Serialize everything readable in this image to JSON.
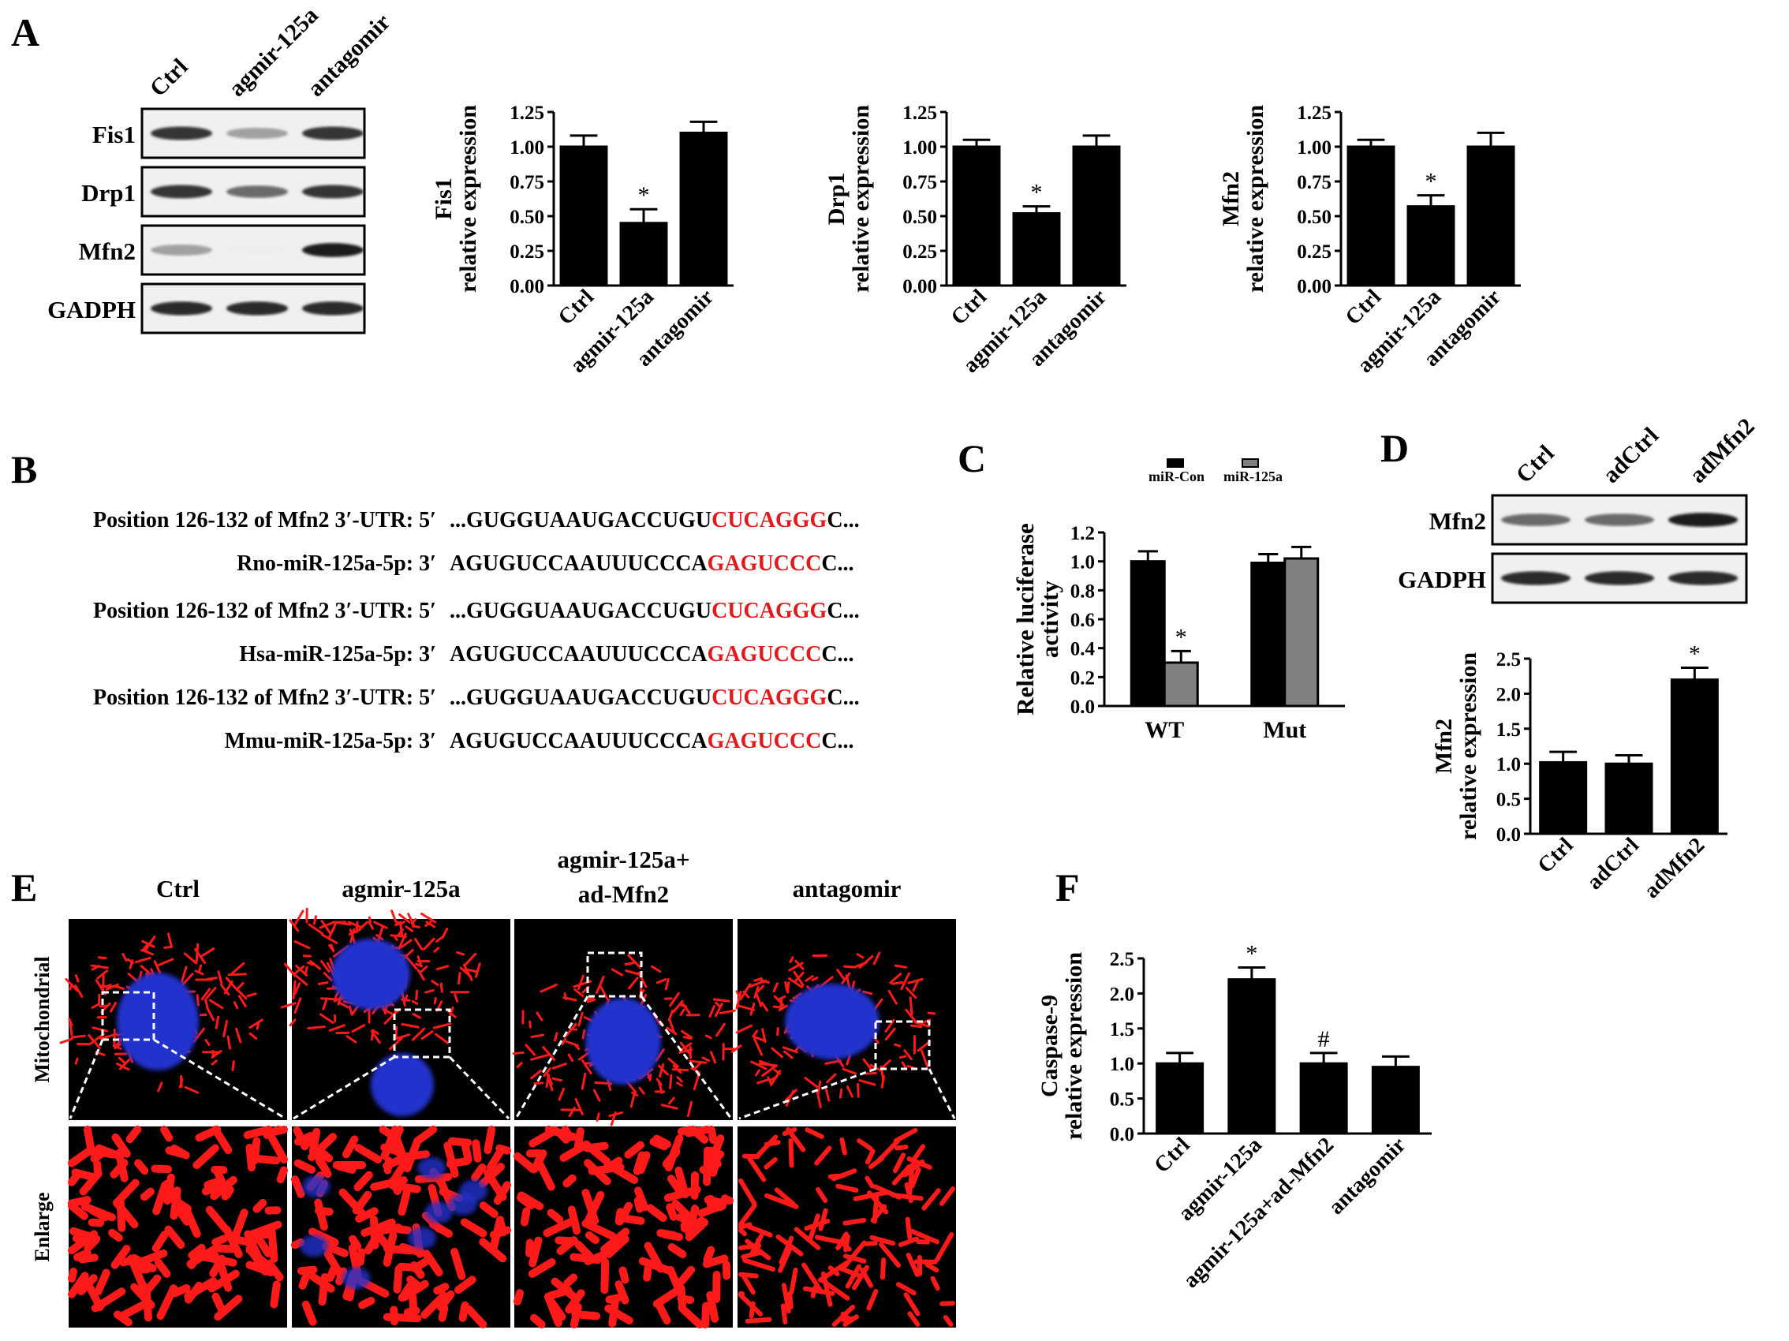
{
  "panel_letters": {
    "A": "A",
    "B": "B",
    "C": "C",
    "D": "D",
    "E": "E",
    "F": "F"
  },
  "colors": {
    "bar_dark": "#000000",
    "bar_gray": "#808080",
    "highlight_red": "#e31a1c",
    "mito_red": "#ff1a1a",
    "nucleus_blue": "#2233cc"
  },
  "blot_A": {
    "lanes": [
      "Ctrl",
      "agmir-125a",
      "antagomir"
    ],
    "rows": [
      {
        "label": "Fis1",
        "intensity": [
          0.85,
          0.35,
          0.85
        ]
      },
      {
        "label": "Drp1",
        "intensity": [
          0.85,
          0.6,
          0.85
        ]
      },
      {
        "label": "Mfn2",
        "intensity": [
          0.35,
          0.05,
          0.95
        ]
      },
      {
        "label": "GADPH",
        "intensity": [
          0.9,
          0.9,
          0.9
        ]
      }
    ]
  },
  "blot_D": {
    "lanes": [
      "Ctrl",
      "adCtrl",
      "adMfn2"
    ],
    "rows": [
      {
        "label": "Mfn2",
        "intensity": [
          0.6,
          0.6,
          0.95
        ]
      },
      {
        "label": "GADPH",
        "intensity": [
          0.9,
          0.9,
          0.9
        ]
      }
    ]
  },
  "sequences": {
    "rows": [
      {
        "label": "Position 126-132 of Mfn2 3′-UTR: 5′",
        "pre": "...GUGGUAAUGACCUGU",
        "hl": "CUCAGGG",
        "post": "C..."
      },
      {
        "label": "Rno-miR-125a-5p: 3′",
        "pre": "AGUGUCCAAUUUCCCA",
        "hl": "GAGUCCC",
        "post": "C..."
      },
      {
        "label": "Position 126-132 of Mfn2 3′-UTR: 5′",
        "pre": "...GUGGUAAUGACCUGU",
        "hl": "CUCAGGG",
        "post": "C..."
      },
      {
        "label": "Hsa-miR-125a-5p: 3′",
        "pre": "AGUGUCCAAUUUCCCA",
        "hl": "GAGUCCC",
        "post": "C..."
      },
      {
        "label": "Position 126-132 of Mfn2 3′-UTR: 5′",
        "pre": "...GUGGUAAUGACCUGU",
        "hl": "CUCAGGG",
        "post": "C..."
      },
      {
        "label": "Mmu-miR-125a-5p: 3′",
        "pre": "AGUGUCCAAUUUCCCA",
        "hl": "GAGUCCC",
        "post": "C..."
      }
    ]
  },
  "microscopy": {
    "columns": [
      "Ctrl",
      "agmir-125a",
      "agmir-125a+\nad-Mfn2",
      "antagomir"
    ],
    "row_labels": [
      "Mitochondrial",
      "Enlarge"
    ]
  },
  "chart_data": [
    {
      "id": "A1",
      "type": "bar",
      "categories": [
        "Ctrl",
        "agmir-125a",
        "antagomir"
      ],
      "values": [
        1.0,
        0.45,
        1.1
      ],
      "errors": [
        0.08,
        0.1,
        0.08
      ],
      "stars": [
        "",
        "*",
        ""
      ],
      "ylabel": [
        "Fis1",
        "relative expression"
      ],
      "ylim": [
        0,
        1.25
      ],
      "yticks": [
        "0.00",
        "0.25",
        "0.50",
        "0.75",
        "1.00",
        "1.25"
      ]
    },
    {
      "id": "A2",
      "type": "bar",
      "categories": [
        "Ctrl",
        "agmir-125a",
        "antagomir"
      ],
      "values": [
        1.0,
        0.52,
        1.0
      ],
      "errors": [
        0.05,
        0.05,
        0.08
      ],
      "stars": [
        "",
        "*",
        ""
      ],
      "ylabel": [
        "Drp1",
        "relative expression"
      ],
      "ylim": [
        0,
        1.25
      ],
      "yticks": [
        "0.00",
        "0.25",
        "0.50",
        "0.75",
        "1.00",
        "1.25"
      ]
    },
    {
      "id": "A3",
      "type": "bar",
      "categories": [
        "Ctrl",
        "agmir-125a",
        "antagomir"
      ],
      "values": [
        1.0,
        0.57,
        1.0
      ],
      "errors": [
        0.05,
        0.08,
        0.1
      ],
      "stars": [
        "",
        "*",
        ""
      ],
      "ylabel": [
        "Mfn2",
        "relative expression"
      ],
      "ylim": [
        0,
        1.25
      ],
      "yticks": [
        "0.00",
        "0.25",
        "0.50",
        "0.75",
        "1.00",
        "1.25"
      ]
    },
    {
      "id": "C",
      "type": "bar",
      "categories": [
        "WT",
        "Mut"
      ],
      "series": [
        {
          "name": "miR-Con",
          "values": [
            1.0,
            0.99
          ],
          "errors": [
            0.07,
            0.06
          ]
        },
        {
          "name": "miR-125a",
          "values": [
            0.3,
            1.02
          ],
          "errors": [
            0.08,
            0.08
          ]
        }
      ],
      "stars": [
        [
          "",
          "*"
        ],
        [
          "",
          ""
        ]
      ],
      "ylabel": [
        "Relative luciferase",
        "activity"
      ],
      "ylim": [
        0,
        1.2
      ],
      "yticks": [
        "0.0",
        "0.2",
        "0.4",
        "0.6",
        "0.8",
        "1.0",
        "1.2"
      ],
      "legend": "top"
    },
    {
      "id": "D",
      "type": "bar",
      "categories": [
        "Ctrl",
        "adCtrl",
        "adMfn2"
      ],
      "values": [
        1.02,
        1.0,
        2.2
      ],
      "errors": [
        0.15,
        0.12,
        0.17
      ],
      "stars": [
        "",
        "",
        "*"
      ],
      "ylabel": [
        "Mfn2",
        "relative expression"
      ],
      "ylim": [
        0,
        2.5
      ],
      "yticks": [
        "0.0",
        "0.5",
        "1.0",
        "1.5",
        "2.0",
        "2.5"
      ]
    },
    {
      "id": "F",
      "type": "bar",
      "categories": [
        "Ctrl",
        "agmir-125a",
        "agmir-125a+ad-Mfn2",
        "antagomir"
      ],
      "values": [
        1.0,
        2.2,
        1.0,
        0.95
      ],
      "errors": [
        0.15,
        0.17,
        0.15,
        0.15
      ],
      "stars": [
        "",
        "*",
        "#",
        ""
      ],
      "ylabel": [
        "Caspase-9",
        "relative expression"
      ],
      "ylim": [
        0,
        2.5
      ],
      "yticks": [
        "0.0",
        "0.5",
        "1.0",
        "1.5",
        "2.0",
        "2.5"
      ]
    }
  ]
}
